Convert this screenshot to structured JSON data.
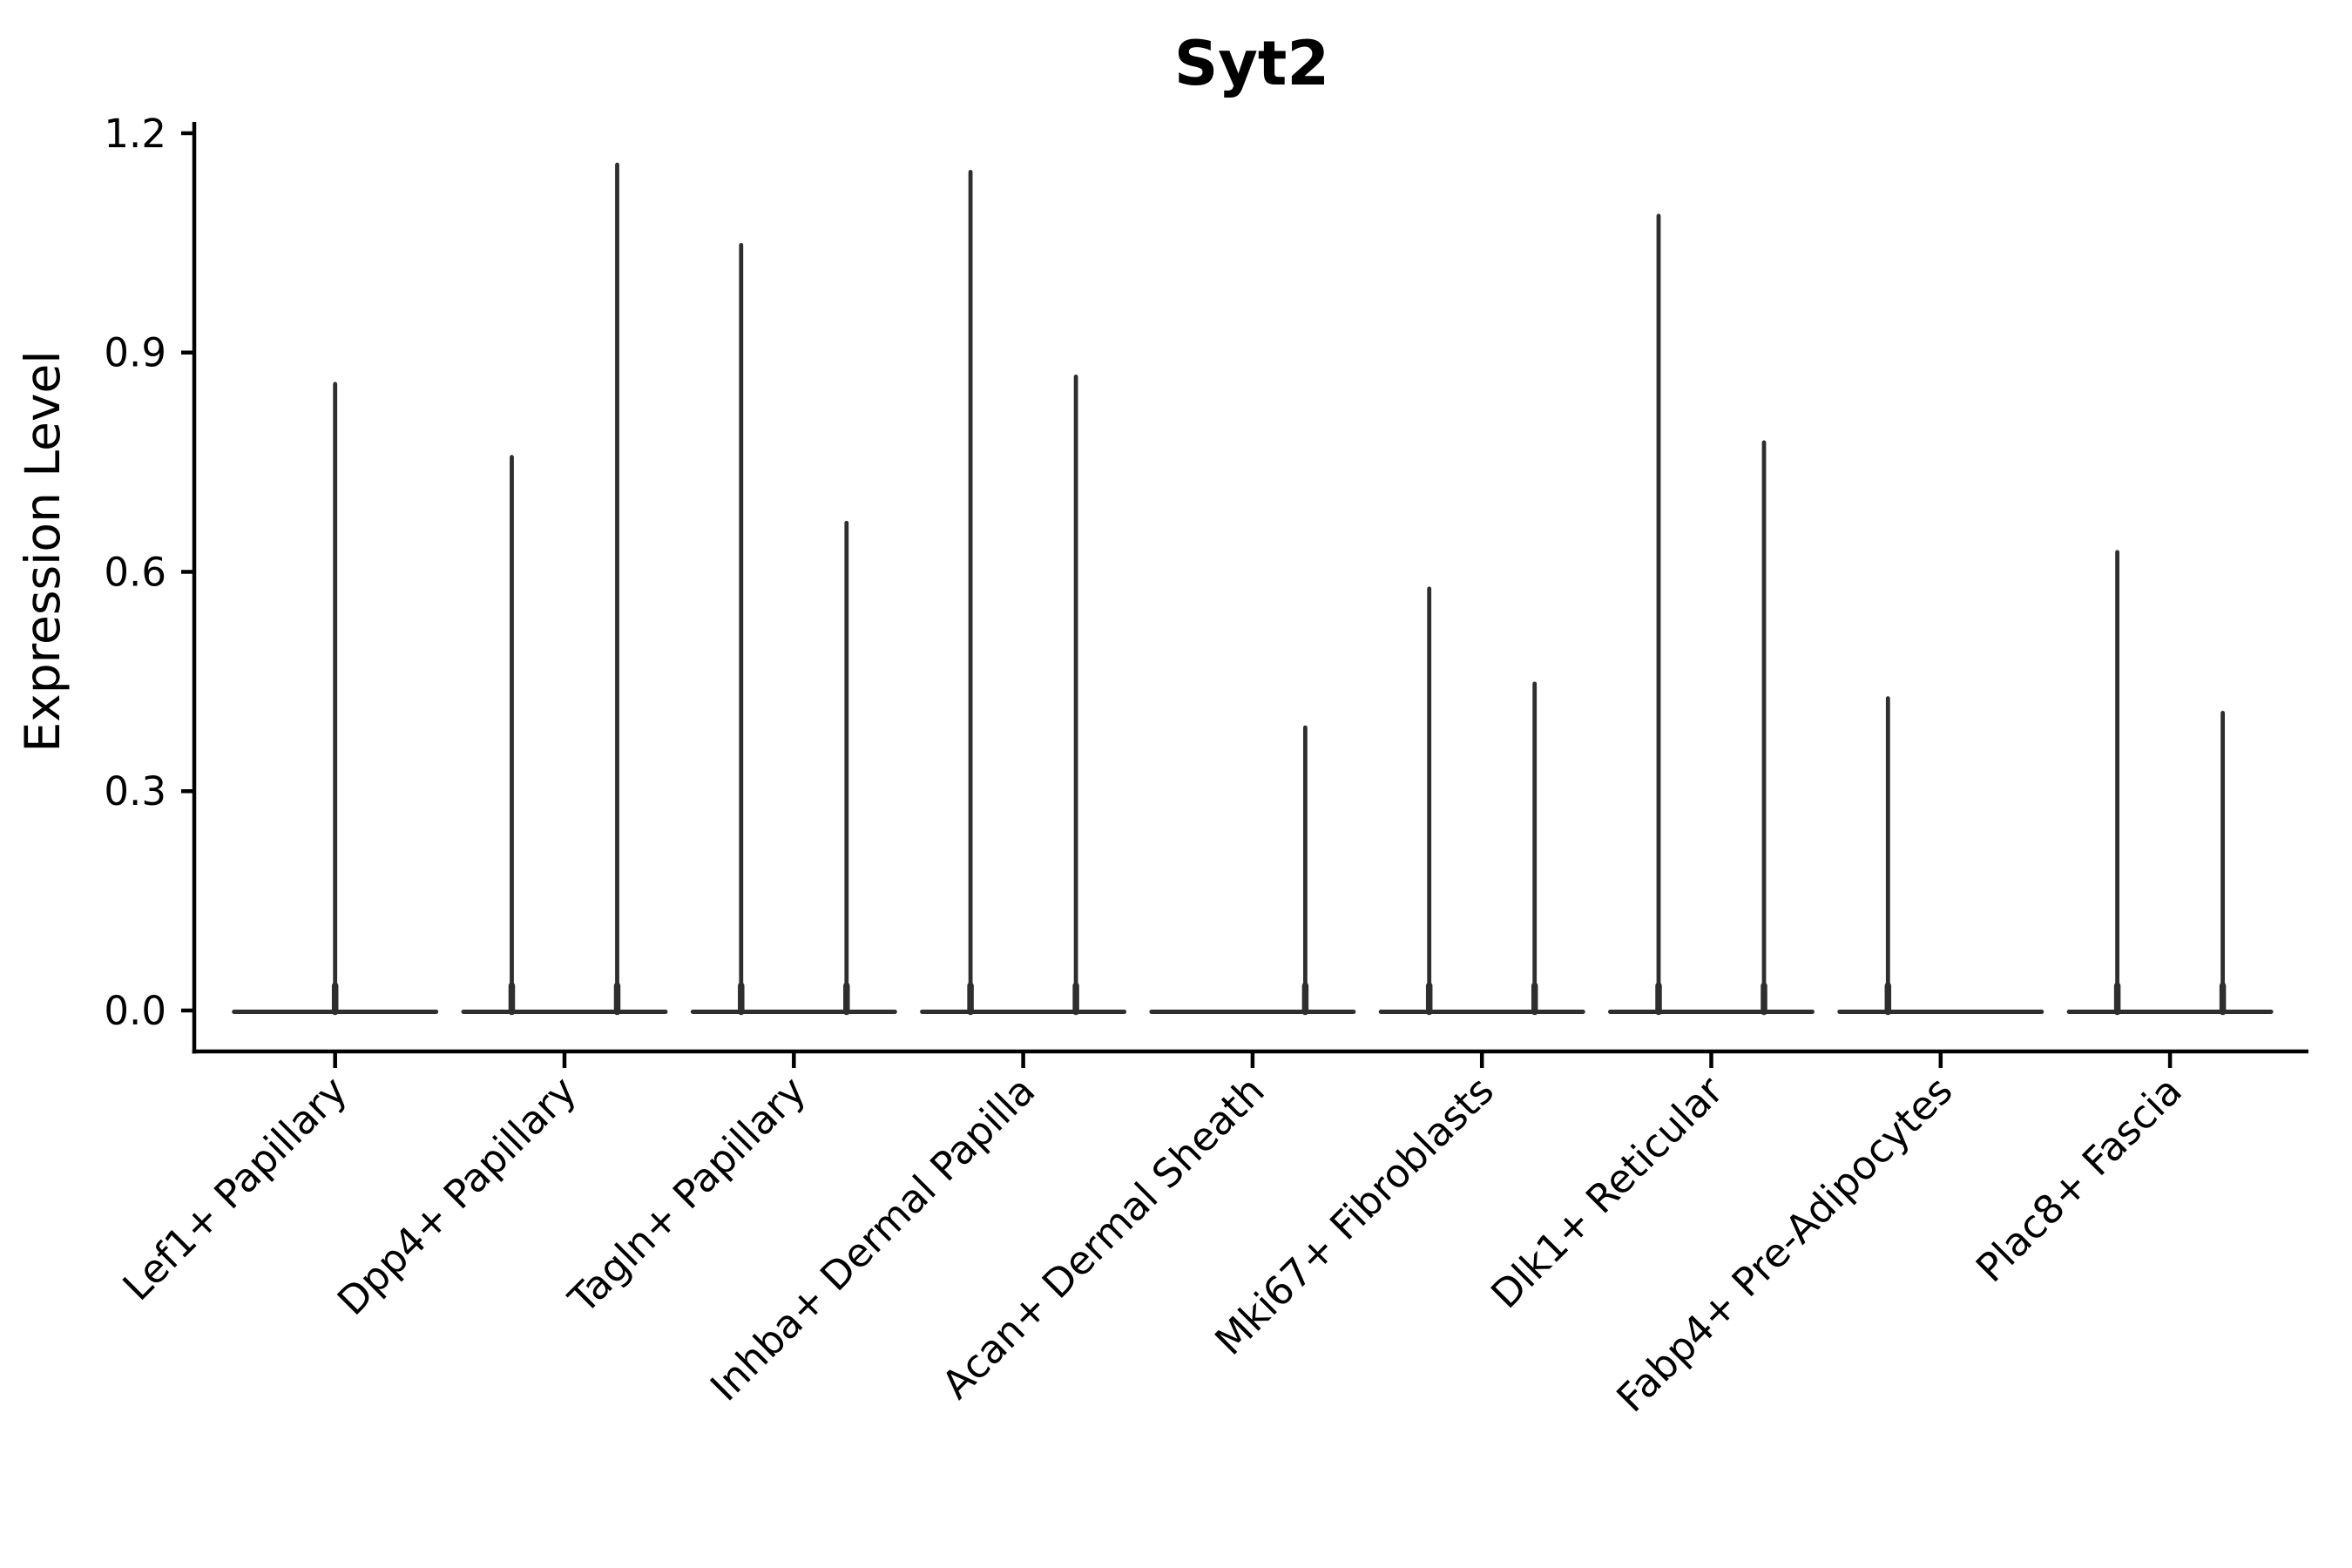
{
  "chart_data": {
    "type": "violin",
    "title": "Syt2",
    "ylabel": "Expression Level",
    "xlabel": "",
    "ylim": [
      0,
      1.2
    ],
    "yticks": [
      {
        "value": 0.0,
        "label": "0.0"
      },
      {
        "value": 0.3,
        "label": "0.3"
      },
      {
        "value": 0.6,
        "label": "0.6"
      },
      {
        "value": 0.9,
        "label": "0.9"
      },
      {
        "value": 1.2,
        "label": "1.2"
      }
    ],
    "grid": false,
    "legend_position": "none",
    "x_tick_label_rotation_deg": 45,
    "violin_color": "#2e2e2e",
    "axis_color": "#000000",
    "background_color": "#ffffff",
    "categories": [
      "Lef1+ Papillary",
      "Dpp4+ Papillary",
      "Tagln+ Papillary",
      "Inhba+ Dermal Papilla",
      "Acan+ Dermal Sheath",
      "Mki67+ Fibroblasts",
      "Dlk1+ Reticular",
      "Fabp4+ Pre-Adipocytes",
      "Plac8+ Fascia"
    ],
    "series": [
      {
        "category": "Lef1+ Papillary",
        "violins": [
          {
            "group": "single",
            "max_expression": 0.86
          }
        ]
      },
      {
        "category": "Dpp4+ Papillary",
        "violins": [
          {
            "group": "left",
            "max_expression": 0.76
          },
          {
            "group": "right",
            "max_expression": 1.16
          }
        ]
      },
      {
        "category": "Tagln+ Papillary",
        "violins": [
          {
            "group": "left",
            "max_expression": 1.05
          },
          {
            "group": "right",
            "max_expression": 0.67
          }
        ]
      },
      {
        "category": "Inhba+ Dermal Papilla",
        "violins": [
          {
            "group": "left",
            "max_expression": 1.15
          },
          {
            "group": "right",
            "max_expression": 0.87
          }
        ]
      },
      {
        "category": "Acan+ Dermal Sheath",
        "violins": [
          {
            "group": "left",
            "max_expression": 0.0
          },
          {
            "group": "right",
            "max_expression": 0.39
          }
        ]
      },
      {
        "category": "Mki67+ Fibroblasts",
        "violins": [
          {
            "group": "left",
            "max_expression": 0.58
          },
          {
            "group": "right",
            "max_expression": 0.45
          }
        ]
      },
      {
        "category": "Dlk1+ Reticular",
        "violins": [
          {
            "group": "left",
            "max_expression": 1.09
          },
          {
            "group": "right",
            "max_expression": 0.78
          }
        ]
      },
      {
        "category": "Fabp4+ Pre-Adipocytes",
        "violins": [
          {
            "group": "left",
            "max_expression": 0.43
          },
          {
            "group": "right",
            "max_expression": 0.0
          }
        ]
      },
      {
        "category": "Plac8+ Fascia",
        "violins": [
          {
            "group": "left",
            "max_expression": 0.63
          },
          {
            "group": "right",
            "max_expression": 0.41
          }
        ]
      }
    ]
  }
}
